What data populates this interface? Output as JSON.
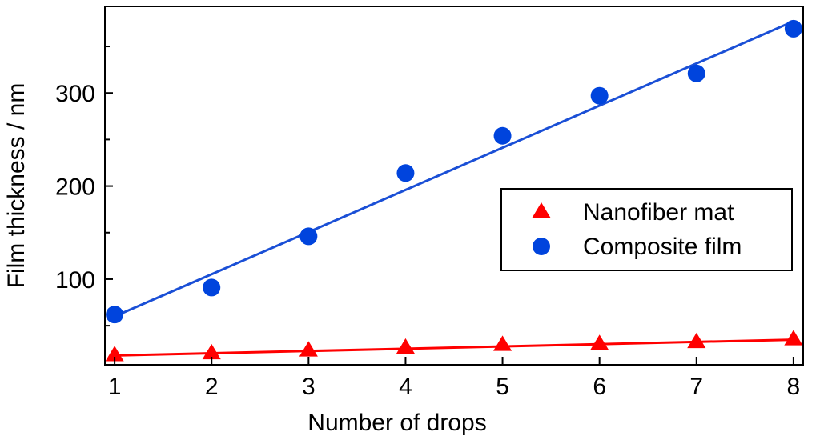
{
  "chart_data": {
    "type": "scatter",
    "title": "",
    "xlabel": "Number of drops",
    "ylabel": "Film thickness / nm",
    "xlim": [
      0.9,
      8.1
    ],
    "ylim": [
      8,
      393
    ],
    "x_ticks": [
      1,
      2,
      3,
      4,
      5,
      6,
      7,
      8
    ],
    "y_ticks_labeled": [
      100,
      200,
      300
    ],
    "y_ticks_minor": [
      50,
      150,
      250,
      350
    ],
    "grid": false,
    "legend_position": "right",
    "series": [
      {
        "name": "Nanofiber mat",
        "marker": "triangle",
        "color": "#ff0000",
        "x": [
          1,
          2,
          3,
          4,
          5,
          6,
          7,
          8
        ],
        "y": [
          19,
          21,
          24,
          27,
          30,
          31,
          33,
          36
        ],
        "fit": {
          "x": [
            1,
            8
          ],
          "y": [
            18,
            35
          ]
        }
      },
      {
        "name": "Composite film",
        "marker": "circle",
        "color": "#0044dd",
        "line_color": "#1a4fd6",
        "x": [
          1,
          2,
          3,
          4,
          5,
          6,
          7,
          8
        ],
        "y": [
          62,
          91,
          146,
          214,
          254,
          297,
          321,
          369
        ],
        "fit": {
          "x": [
            1,
            8
          ],
          "y": [
            60,
            377
          ]
        }
      }
    ]
  }
}
